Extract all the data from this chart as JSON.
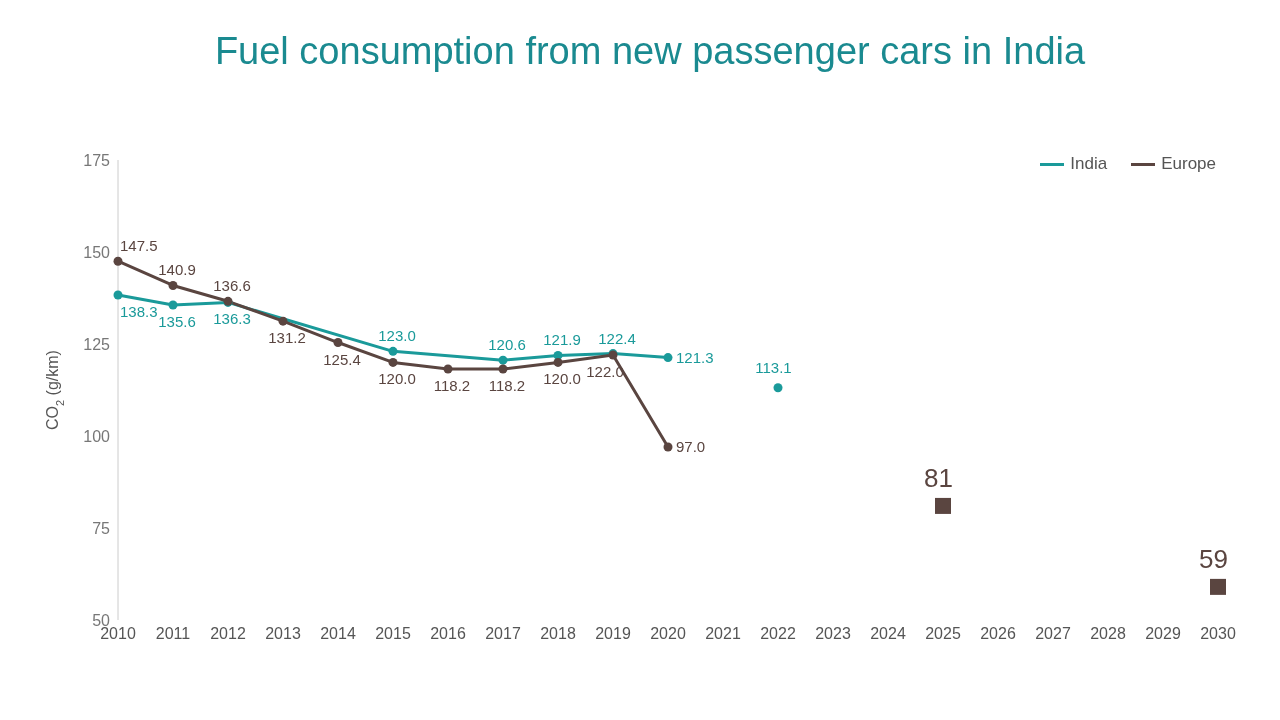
{
  "chart_data": {
    "type": "line",
    "title": "Fuel consumption from new passenger cars in India",
    "ylabel": "CO$_{2}$ (g/km)",
    "categories": [
      "2010",
      "2011",
      "2012",
      "2013",
      "2014",
      "2015",
      "2016",
      "2017",
      "2018",
      "2019",
      "2020",
      "2021",
      "2022",
      "2023",
      "2024",
      "2025",
      "2026",
      "2027",
      "2028",
      "2029",
      "2030"
    ],
    "ylim": [
      50,
      175
    ],
    "yticks": [
      50,
      75,
      100,
      125,
      150,
      175
    ],
    "grid": false,
    "legend": "top right",
    "series": [
      {
        "name": "India",
        "color": "#1a9a9a",
        "marker": "circle",
        "values": [
          138.3,
          135.6,
          136.3,
          null,
          null,
          123.0,
          null,
          120.6,
          121.9,
          122.4,
          121.3,
          null,
          null,
          null,
          null,
          null,
          null,
          null,
          null,
          null,
          null
        ],
        "value_labels": [
          "138.3",
          "135.6",
          "136.3",
          null,
          null,
          "123.0",
          null,
          "120.6",
          "121.9",
          "122.4",
          "121.3",
          null,
          null,
          null,
          null,
          null,
          null,
          null,
          null,
          null,
          null
        ]
      },
      {
        "name": "Europe",
        "color": "#5a4540",
        "marker": "circle",
        "values": [
          147.5,
          140.9,
          136.6,
          131.2,
          125.4,
          120.0,
          118.2,
          118.2,
          120.0,
          122.0,
          97.0,
          null,
          null,
          null,
          null,
          null,
          null,
          null,
          null,
          null,
          null
        ],
        "value_labels": [
          "147.5",
          "140.9",
          "136.6",
          "131.2",
          "125.4",
          "120.0",
          "118.2",
          "118.2",
          "120.0",
          "122.0",
          "97.0",
          null,
          null,
          null,
          null,
          null,
          null,
          null,
          null,
          null,
          null
        ]
      },
      {
        "type": "scatter",
        "color": "#1a9a9a",
        "marker": "circle",
        "values": [
          null,
          null,
          null,
          null,
          null,
          null,
          null,
          null,
          null,
          null,
          null,
          null,
          113.1,
          null,
          null,
          null,
          null,
          null,
          null,
          null,
          null
        ],
        "value_labels": [
          null,
          null,
          null,
          null,
          null,
          null,
          null,
          null,
          null,
          null,
          null,
          null,
          "113.1",
          null,
          null,
          null,
          null,
          null,
          null,
          null,
          null
        ]
      },
      {
        "type": "scatter",
        "color": "#5a4540",
        "marker": "square",
        "values": [
          null,
          null,
          null,
          null,
          null,
          null,
          null,
          null,
          null,
          null,
          null,
          null,
          null,
          null,
          null,
          81,
          null,
          null,
          null,
          null,
          59
        ],
        "value_labels": [
          null,
          null,
          null,
          null,
          null,
          null,
          null,
          null,
          null,
          null,
          null,
          null,
          null,
          null,
          null,
          "81",
          null,
          null,
          null,
          null,
          "59"
        ]
      }
    ]
  }
}
